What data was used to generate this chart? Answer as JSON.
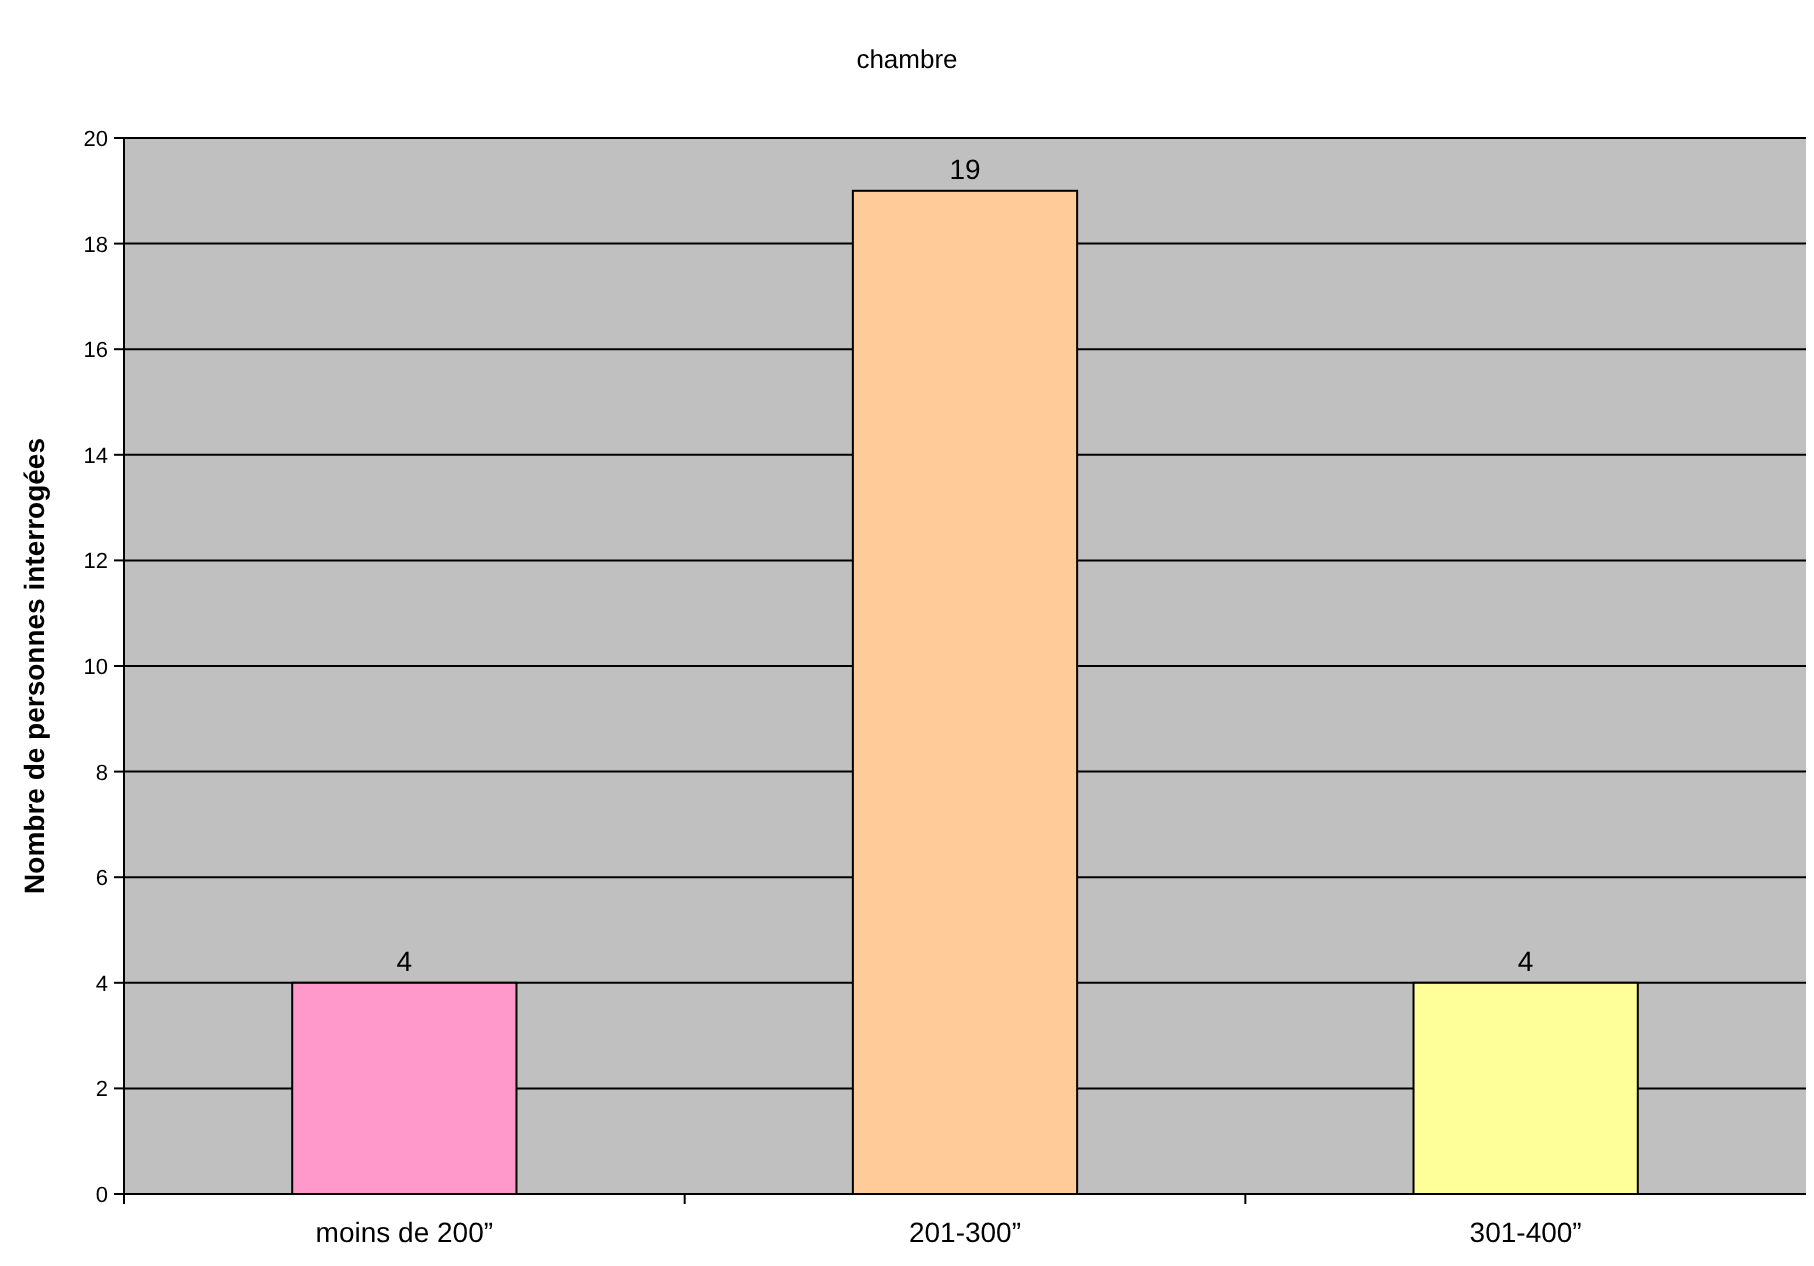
{
  "chart_data": {
    "type": "bar",
    "title": "chambre",
    "ylabel": "Nombre de personnes interrogées",
    "categories": [
      "moins de 200”",
      "201-300”",
      "301-400”"
    ],
    "values": [
      4,
      19,
      4
    ],
    "colors": [
      "#ff99cc",
      "#ffcc99",
      "#ffff99"
    ],
    "ylim": [
      0,
      20
    ],
    "yticks": [
      0,
      2,
      4,
      6,
      8,
      10,
      12,
      14,
      16,
      18,
      20
    ],
    "grid": "y",
    "data_labels": true
  }
}
